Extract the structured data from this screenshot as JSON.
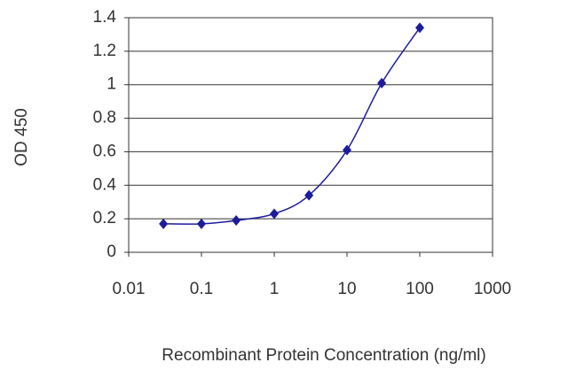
{
  "chart_data": {
    "type": "line",
    "xlabel": "Recombinant Protein Concentration (ng/ml)",
    "ylabel": "OD 450",
    "xscale": "log",
    "x": [
      0.03,
      0.1,
      0.3,
      1,
      3,
      10,
      30,
      100
    ],
    "series": [
      {
        "color": "#1c1c9c",
        "values": [
          0.17,
          0.17,
          0.19,
          0.23,
          0.34,
          0.61,
          1.01,
          1.34
        ]
      }
    ],
    "xlim": [
      0.01,
      1000
    ],
    "xticks": [
      0.01,
      0.1,
      1,
      10,
      100,
      1000
    ],
    "ylim": [
      0,
      1.4
    ],
    "yticks": [
      0,
      0.2,
      0.4,
      0.6,
      0.8,
      1,
      1.2,
      1.4
    ],
    "grid": true
  }
}
